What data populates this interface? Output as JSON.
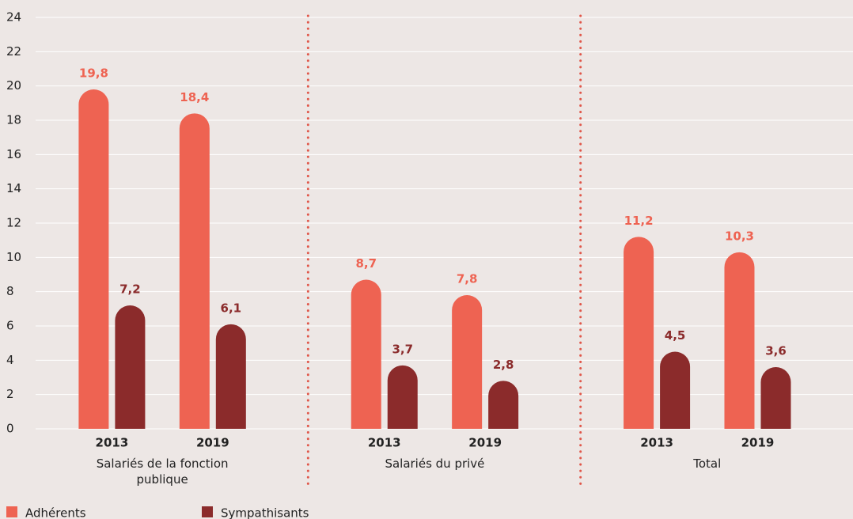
{
  "chart_data": {
    "type": "bar",
    "groups": [
      "Salariés de la fonction publique",
      "Salariés du privé",
      "Total"
    ],
    "categories": [
      "2013",
      "2019",
      "2013",
      "2019",
      "2013",
      "2019"
    ],
    "series": [
      {
        "name": "Adhérents",
        "color": "#ee6352",
        "values": [
          19.8,
          18.4,
          8.7,
          7.8,
          11.2,
          10.3
        ],
        "value_labels": [
          "19,8",
          "18,4",
          "8,7",
          "7,8",
          "11,2",
          "10,3"
        ]
      },
      {
        "name": "Sympathisants",
        "color": "#8b2b2b",
        "values": [
          7.2,
          6.1,
          3.7,
          2.8,
          4.5,
          3.6
        ],
        "value_labels": [
          "7,2",
          "6,1",
          "3,7",
          "2,8",
          "4,5",
          "3,6"
        ]
      }
    ],
    "ylim": [
      0,
      24
    ],
    "yticks": [
      0,
      2,
      4,
      6,
      8,
      10,
      12,
      14,
      16,
      18,
      20,
      22,
      24
    ],
    "grid": true
  }
}
